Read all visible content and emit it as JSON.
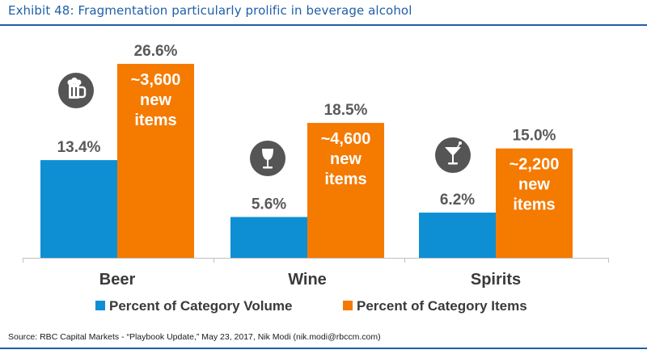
{
  "header": {
    "title": "Exhibit 48: Fragmentation particularly prolific in beverage alcohol"
  },
  "footer": {
    "source": "Source: RBC Capital Markets - “Playbook Update,” May 23, 2017, Nik Modi (nik.modi@rbccm.com)"
  },
  "colors": {
    "volume": "#0e8fd3",
    "items": "#f57a00",
    "icon_bg": "#555555",
    "title": "#1f5fa8",
    "axis": "#bfbfbf"
  },
  "chart_data": {
    "type": "bar",
    "title": "Fragmentation particularly prolific in beverage alcohol",
    "categories": [
      "Beer",
      "Wine",
      "Spirits"
    ],
    "icons": [
      "beer-mug-icon",
      "wine-glass-icon",
      "cocktail-glass-icon"
    ],
    "series": [
      {
        "name": "Percent of Category Volume",
        "values": [
          13.4,
          5.6,
          6.2
        ],
        "labels": [
          "13.4%",
          "5.6%",
          "6.2%"
        ]
      },
      {
        "name": "Percent of Category Items",
        "values": [
          26.6,
          18.5,
          15.0
        ],
        "labels": [
          "26.6%",
          "18.5%",
          "15.0%"
        ],
        "inner_labels": [
          [
            "~3,600",
            "new",
            "items"
          ],
          [
            "~4,600",
            "new",
            "items"
          ],
          [
            "~2,200",
            "new",
            "items"
          ]
        ]
      }
    ],
    "ylim": [
      0,
      28
    ],
    "grid": false,
    "legend": "bottom"
  }
}
